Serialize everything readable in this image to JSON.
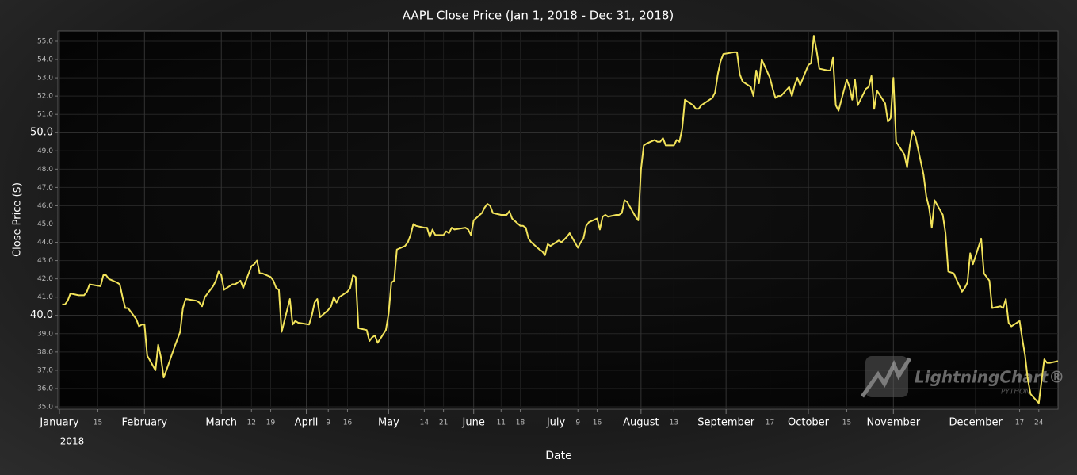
{
  "chart_data": {
    "type": "line",
    "title": "AAPL Close Price (Jan 1, 2018 - Dec 31, 2018)",
    "x_label": "Date",
    "y_label": "Close Price ($)",
    "x_year_label": "2018",
    "watermark": {
      "brand": "LightningChart®",
      "sub": "PYTHON"
    },
    "color": "#f2e35a",
    "grid": true,
    "xlim": [
      "2018-01-01",
      "2018-12-31"
    ],
    "ylim": [
      34.87,
      55.52
    ],
    "yticks": [
      {
        "value": 35,
        "label": "35.0"
      },
      {
        "value": 36,
        "label": "36.0"
      },
      {
        "value": 37,
        "label": "37.0"
      },
      {
        "value": 38,
        "label": "38.0"
      },
      {
        "value": 39,
        "label": "39.0"
      },
      {
        "value": 40,
        "label": "40.0"
      },
      {
        "value": 41,
        "label": "41.0"
      },
      {
        "value": 42,
        "label": "42.0"
      },
      {
        "value": 43,
        "label": "43.0"
      },
      {
        "value": 44,
        "label": "44.0"
      },
      {
        "value": 45,
        "label": "45.0"
      },
      {
        "value": 46,
        "label": "46.0"
      },
      {
        "value": 47,
        "label": "47.0"
      },
      {
        "value": 48,
        "label": "48.0"
      },
      {
        "value": 49,
        "label": "49.0"
      },
      {
        "value": 50,
        "label": "50.0"
      },
      {
        "value": 51,
        "label": "51.0"
      },
      {
        "value": 52,
        "label": "52.0"
      },
      {
        "value": 53,
        "label": "53.0"
      },
      {
        "value": 54,
        "label": "54.0"
      },
      {
        "value": 55,
        "label": "55.0"
      }
    ],
    "xticks": [
      {
        "value": "2018-01-01",
        "label": "January"
      },
      {
        "value": "2018-01-15",
        "label": "15"
      },
      {
        "value": "2018-02-01",
        "label": "February"
      },
      {
        "value": "2018-03-01",
        "label": "March"
      },
      {
        "value": "2018-03-12",
        "label": "12"
      },
      {
        "value": "2018-03-19",
        "label": "19"
      },
      {
        "value": "2018-04-01",
        "label": "April"
      },
      {
        "value": "2018-04-09",
        "label": "9"
      },
      {
        "value": "2018-04-16",
        "label": "16"
      },
      {
        "value": "2018-05-01",
        "label": "May"
      },
      {
        "value": "2018-05-14",
        "label": "14"
      },
      {
        "value": "2018-05-21",
        "label": "21"
      },
      {
        "value": "2018-06-01",
        "label": "June"
      },
      {
        "value": "2018-06-11",
        "label": "11"
      },
      {
        "value": "2018-06-18",
        "label": "18"
      },
      {
        "value": "2018-07-01",
        "label": "July"
      },
      {
        "value": "2018-07-09",
        "label": "9"
      },
      {
        "value": "2018-07-16",
        "label": "16"
      },
      {
        "value": "2018-08-01",
        "label": "August"
      },
      {
        "value": "2018-08-13",
        "label": "13"
      },
      {
        "value": "2018-09-01",
        "label": "September"
      },
      {
        "value": "2018-09-17",
        "label": "17"
      },
      {
        "value": "2018-10-01",
        "label": "October"
      },
      {
        "value": "2018-10-15",
        "label": "15"
      },
      {
        "value": "2018-11-01",
        "label": "November"
      },
      {
        "value": "2018-12-01",
        "label": "December"
      },
      {
        "value": "2018-12-17",
        "label": "17"
      },
      {
        "value": "2018-12-24",
        "label": "24"
      }
    ],
    "x": [
      "2018-01-02",
      "2018-01-03",
      "2018-01-04",
      "2018-01-05",
      "2018-01-08",
      "2018-01-09",
      "2018-01-10",
      "2018-01-11",
      "2018-01-12",
      "2018-01-16",
      "2018-01-17",
      "2018-01-18",
      "2018-01-19",
      "2018-01-22",
      "2018-01-23",
      "2018-01-24",
      "2018-01-25",
      "2018-01-26",
      "2018-01-29",
      "2018-01-30",
      "2018-01-31",
      "2018-02-01",
      "2018-02-02",
      "2018-02-05",
      "2018-02-06",
      "2018-02-07",
      "2018-02-08",
      "2018-02-09",
      "2018-02-12",
      "2018-02-13",
      "2018-02-14",
      "2018-02-15",
      "2018-02-16",
      "2018-02-20",
      "2018-02-21",
      "2018-02-22",
      "2018-02-23",
      "2018-02-26",
      "2018-02-27",
      "2018-02-28",
      "2018-03-01",
      "2018-03-02",
      "2018-03-05",
      "2018-03-06",
      "2018-03-07",
      "2018-03-08",
      "2018-03-09",
      "2018-03-12",
      "2018-03-13",
      "2018-03-14",
      "2018-03-15",
      "2018-03-16",
      "2018-03-19",
      "2018-03-20",
      "2018-03-21",
      "2018-03-22",
      "2018-03-23",
      "2018-03-26",
      "2018-03-27",
      "2018-03-28",
      "2018-03-29",
      "2018-04-02",
      "2018-04-03",
      "2018-04-04",
      "2018-04-05",
      "2018-04-06",
      "2018-04-09",
      "2018-04-10",
      "2018-04-11",
      "2018-04-12",
      "2018-04-13",
      "2018-04-16",
      "2018-04-17",
      "2018-04-18",
      "2018-04-19",
      "2018-04-20",
      "2018-04-23",
      "2018-04-24",
      "2018-04-25",
      "2018-04-26",
      "2018-04-27",
      "2018-04-30",
      "2018-05-01",
      "2018-05-02",
      "2018-05-03",
      "2018-05-04",
      "2018-05-07",
      "2018-05-08",
      "2018-05-09",
      "2018-05-10",
      "2018-05-11",
      "2018-05-14",
      "2018-05-15",
      "2018-05-16",
      "2018-05-17",
      "2018-05-18",
      "2018-05-21",
      "2018-05-22",
      "2018-05-23",
      "2018-05-24",
      "2018-05-25",
      "2018-05-29",
      "2018-05-30",
      "2018-05-31",
      "2018-06-01",
      "2018-06-04",
      "2018-06-05",
      "2018-06-06",
      "2018-06-07",
      "2018-06-08",
      "2018-06-11",
      "2018-06-12",
      "2018-06-13",
      "2018-06-14",
      "2018-06-15",
      "2018-06-18",
      "2018-06-19",
      "2018-06-20",
      "2018-06-21",
      "2018-06-22",
      "2018-06-25",
      "2018-06-26",
      "2018-06-27",
      "2018-06-28",
      "2018-06-29",
      "2018-07-02",
      "2018-07-03",
      "2018-07-05",
      "2018-07-06",
      "2018-07-09",
      "2018-07-10",
      "2018-07-11",
      "2018-07-12",
      "2018-07-13",
      "2018-07-16",
      "2018-07-17",
      "2018-07-18",
      "2018-07-19",
      "2018-07-20",
      "2018-07-23",
      "2018-07-24",
      "2018-07-25",
      "2018-07-26",
      "2018-07-27",
      "2018-07-30",
      "2018-07-31",
      "2018-08-01",
      "2018-08-02",
      "2018-08-03",
      "2018-08-06",
      "2018-08-07",
      "2018-08-08",
      "2018-08-09",
      "2018-08-10",
      "2018-08-13",
      "2018-08-14",
      "2018-08-15",
      "2018-08-16",
      "2018-08-17",
      "2018-08-20",
      "2018-08-21",
      "2018-08-22",
      "2018-08-23",
      "2018-08-24",
      "2018-08-27",
      "2018-08-28",
      "2018-08-29",
      "2018-08-30",
      "2018-08-31",
      "2018-09-04",
      "2018-09-05",
      "2018-09-06",
      "2018-09-07",
      "2018-09-10",
      "2018-09-11",
      "2018-09-12",
      "2018-09-13",
      "2018-09-14",
      "2018-09-17",
      "2018-09-18",
      "2018-09-19",
      "2018-09-20",
      "2018-09-21",
      "2018-09-24",
      "2018-09-25",
      "2018-09-26",
      "2018-09-27",
      "2018-09-28",
      "2018-10-01",
      "2018-10-02",
      "2018-10-03",
      "2018-10-04",
      "2018-10-05",
      "2018-10-08",
      "2018-10-09",
      "2018-10-10",
      "2018-10-11",
      "2018-10-12",
      "2018-10-15",
      "2018-10-16",
      "2018-10-17",
      "2018-10-18",
      "2018-10-19",
      "2018-10-22",
      "2018-10-23",
      "2018-10-24",
      "2018-10-25",
      "2018-10-26",
      "2018-10-29",
      "2018-10-30",
      "2018-10-31",
      "2018-11-01",
      "2018-11-02",
      "2018-11-05",
      "2018-11-06",
      "2018-11-07",
      "2018-11-08",
      "2018-11-09",
      "2018-11-12",
      "2018-11-13",
      "2018-11-14",
      "2018-11-15",
      "2018-11-16",
      "2018-11-19",
      "2018-11-20",
      "2018-11-21",
      "2018-11-23",
      "2018-11-26",
      "2018-11-27",
      "2018-11-28",
      "2018-11-29",
      "2018-11-30",
      "2018-12-03",
      "2018-12-04",
      "2018-12-06",
      "2018-12-07",
      "2018-12-10",
      "2018-12-11",
      "2018-12-12",
      "2018-12-13",
      "2018-12-14",
      "2018-12-17",
      "2018-12-18",
      "2018-12-19",
      "2018-12-20",
      "2018-12-21",
      "2018-12-24",
      "2018-12-26",
      "2018-12-27",
      "2018-12-28",
      "2018-12-31"
    ],
    "values": [
      40.6,
      40.6,
      40.8,
      41.2,
      41.1,
      41.1,
      41.1,
      41.3,
      41.7,
      41.6,
      42.2,
      42.2,
      42.0,
      41.8,
      41.7,
      41.0,
      40.4,
      40.4,
      39.8,
      39.4,
      39.5,
      39.5,
      37.8,
      37.0,
      38.4,
      37.7,
      36.6,
      37.0,
      38.3,
      38.7,
      39.1,
      40.4,
      40.9,
      40.8,
      40.7,
      40.5,
      41.0,
      41.6,
      41.9,
      42.4,
      42.2,
      41.4,
      41.7,
      41.7,
      41.8,
      41.9,
      41.5,
      42.7,
      42.8,
      43.0,
      42.3,
      42.3,
      42.1,
      41.9,
      41.5,
      41.4,
      39.1,
      40.9,
      39.5,
      39.7,
      39.6,
      39.5,
      40.0,
      40.7,
      40.9,
      39.9,
      40.3,
      40.5,
      41.0,
      40.7,
      41.0,
      41.3,
      41.5,
      42.2,
      42.1,
      39.3,
      39.2,
      38.6,
      38.8,
      38.9,
      38.5,
      39.2,
      40.1,
      41.8,
      41.9,
      43.6,
      43.8,
      44.0,
      44.4,
      45.0,
      44.9,
      44.8,
      44.8,
      44.3,
      44.7,
      44.4,
      44.4,
      44.6,
      44.5,
      44.8,
      44.7,
      44.8,
      44.7,
      44.4,
      45.2,
      45.6,
      45.9,
      46.1,
      46.0,
      45.6,
      45.5,
      45.5,
      45.5,
      45.7,
      45.3,
      44.9,
      44.9,
      44.8,
      44.2,
      44.0,
      43.6,
      43.5,
      43.3,
      43.9,
      43.8,
      44.1,
      44.0,
      44.3,
      44.5,
      43.7,
      44.0,
      44.2,
      44.9,
      45.1,
      45.3,
      44.7,
      45.4,
      45.5,
      45.4,
      45.5,
      45.5,
      45.6,
      46.3,
      46.2,
      45.4,
      45.2,
      48.0,
      49.3,
      49.4,
      49.6,
      49.5,
      49.5,
      49.7,
      49.3,
      49.3,
      49.6,
      49.5,
      50.2,
      51.8,
      51.5,
      51.3,
      51.3,
      51.5,
      51.6,
      51.9,
      52.2,
      53.2,
      53.9,
      54.3,
      54.4,
      54.4,
      53.2,
      52.8,
      52.5,
      52.0,
      53.4,
      52.7,
      54.0,
      53.0,
      52.4,
      51.9,
      52.0,
      52.0,
      52.5,
      52.0,
      52.6,
      53.0,
      52.6,
      53.7,
      53.8,
      55.3,
      54.5,
      53.5,
      53.4,
      53.4,
      54.1,
      51.5,
      51.2,
      52.9,
      52.5,
      51.8,
      52.9,
      51.5,
      52.4,
      52.5,
      53.1,
      51.3,
      52.3,
      51.6,
      50.6,
      50.8,
      53.0,
      49.5,
      48.8,
      48.1,
      49.3,
      50.1,
      49.8,
      47.7,
      46.5,
      45.9,
      44.8,
      46.3,
      45.5,
      44.5,
      42.4,
      42.3,
      41.3,
      41.5,
      41.8,
      43.4,
      42.8,
      44.2,
      42.3,
      41.9,
      40.4,
      40.5,
      40.4,
      40.9,
      39.6,
      39.4,
      39.7,
      38.7,
      37.8,
      36.5,
      35.7,
      35.2,
      37.6,
      37.4,
      37.4,
      37.5
    ]
  }
}
